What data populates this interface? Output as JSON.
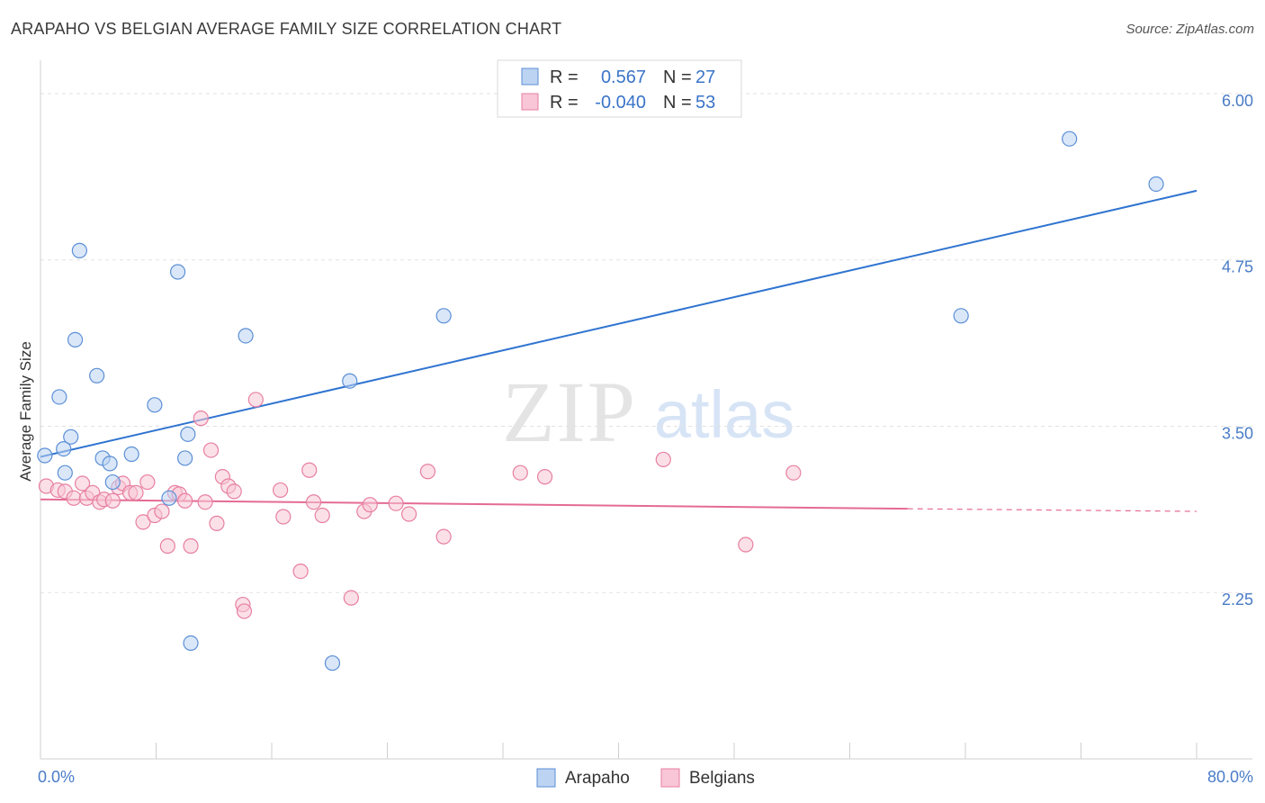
{
  "title": "ARAPAHO VS BELGIAN AVERAGE FAMILY SIZE CORRELATION CHART",
  "source": "Source: ZipAtlas.com",
  "watermark": {
    "zip": "ZIP",
    "atlas": "atlas"
  },
  "chart_data": {
    "type": "scatter",
    "ylabel": "Average Family Size",
    "xlim": [
      0,
      80
    ],
    "ylim": [
      1.0,
      6.25
    ],
    "y_ticks": [
      2.25,
      3.5,
      4.75,
      6.0
    ],
    "y_tick_labels": [
      "2.25",
      "3.50",
      "4.75",
      "6.00"
    ],
    "x_tick_labels": [
      "0.0%",
      "80.0%"
    ],
    "grid": true,
    "legend": {
      "position": "top-center",
      "rows": [
        {
          "r_label": "R =",
          "r_value": "0.567",
          "n_label": "N =",
          "n_value": "27"
        },
        {
          "r_label": "R =",
          "r_value": "-0.040",
          "n_label": "N =",
          "n_value": "53"
        }
      ]
    },
    "series": [
      {
        "name": "Arapaho",
        "color": "#5b8fd6",
        "fill": "#bcd3f2",
        "trend": {
          "x": [
            0,
            80
          ],
          "y": [
            3.27,
            5.27
          ]
        },
        "points": [
          [
            0.3,
            3.28
          ],
          [
            1.3,
            3.72
          ],
          [
            1.6,
            3.33
          ],
          [
            1.7,
            3.15
          ],
          [
            2.1,
            3.42
          ],
          [
            2.4,
            4.15
          ],
          [
            2.7,
            4.82
          ],
          [
            3.9,
            3.88
          ],
          [
            4.3,
            3.26
          ],
          [
            4.8,
            3.22
          ],
          [
            5.0,
            3.08
          ],
          [
            6.3,
            3.29
          ],
          [
            7.9,
            3.66
          ],
          [
            8.9,
            2.96
          ],
          [
            9.5,
            4.66
          ],
          [
            10.0,
            3.26
          ],
          [
            10.2,
            3.44
          ],
          [
            10.4,
            1.87
          ],
          [
            14.2,
            4.18
          ],
          [
            20.2,
            1.72
          ],
          [
            21.4,
            3.84
          ],
          [
            27.9,
            4.33
          ],
          [
            63.7,
            4.33
          ],
          [
            71.2,
            5.66
          ],
          [
            77.2,
            5.32
          ]
        ]
      },
      {
        "name": "Belgians",
        "color": "#e77fa1",
        "fill": "#f8c6d6",
        "trend": {
          "x": [
            0,
            60
          ],
          "y": [
            2.95,
            2.88
          ]
        },
        "trend_dashed": {
          "x": [
            60,
            80
          ],
          "y": [
            2.88,
            2.86
          ]
        },
        "points": [
          [
            0.4,
            3.05
          ],
          [
            1.2,
            3.02
          ],
          [
            1.7,
            3.01
          ],
          [
            2.3,
            2.96
          ],
          [
            2.9,
            3.07
          ],
          [
            3.2,
            2.96
          ],
          [
            3.6,
            3.0
          ],
          [
            4.1,
            2.93
          ],
          [
            4.4,
            2.95
          ],
          [
            5.0,
            2.94
          ],
          [
            5.4,
            3.04
          ],
          [
            5.7,
            3.07
          ],
          [
            6.2,
            3.0
          ],
          [
            6.6,
            3.0
          ],
          [
            7.1,
            2.78
          ],
          [
            7.4,
            3.08
          ],
          [
            7.9,
            2.83
          ],
          [
            8.4,
            2.86
          ],
          [
            8.8,
            2.6
          ],
          [
            9.3,
            3.0
          ],
          [
            9.6,
            2.99
          ],
          [
            10.0,
            2.94
          ],
          [
            10.4,
            2.6
          ],
          [
            11.1,
            3.56
          ],
          [
            11.4,
            2.93
          ],
          [
            11.8,
            3.32
          ],
          [
            12.2,
            2.77
          ],
          [
            12.6,
            3.12
          ],
          [
            13.0,
            3.05
          ],
          [
            13.4,
            3.01
          ],
          [
            14.0,
            2.16
          ],
          [
            14.1,
            2.11
          ],
          [
            14.9,
            3.7
          ],
          [
            16.6,
            3.02
          ],
          [
            16.8,
            2.82
          ],
          [
            18.0,
            2.41
          ],
          [
            18.6,
            3.17
          ],
          [
            18.9,
            2.93
          ],
          [
            19.5,
            2.83
          ],
          [
            21.5,
            2.21
          ],
          [
            22.4,
            2.86
          ],
          [
            22.8,
            2.91
          ],
          [
            24.6,
            2.92
          ],
          [
            25.5,
            2.84
          ],
          [
            26.8,
            3.16
          ],
          [
            27.9,
            2.67
          ],
          [
            33.2,
            3.15
          ],
          [
            34.9,
            3.12
          ],
          [
            43.1,
            3.25
          ],
          [
            48.8,
            2.61
          ],
          [
            52.1,
            3.15
          ]
        ]
      }
    ]
  }
}
